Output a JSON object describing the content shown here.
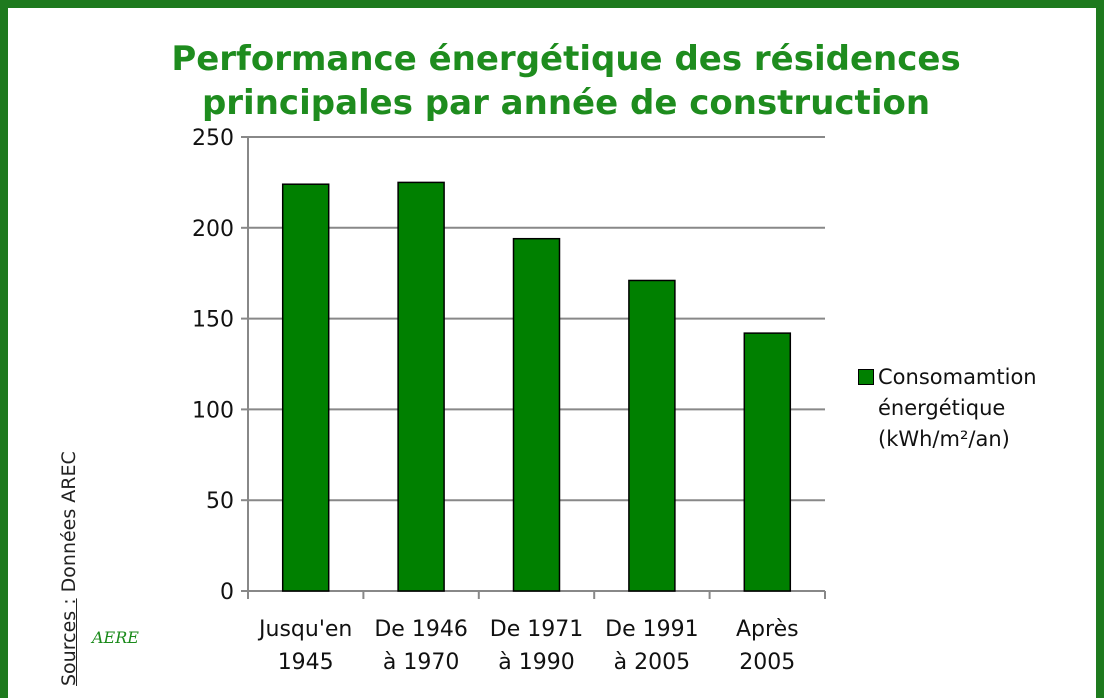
{
  "chart_data": {
    "type": "bar",
    "title": [
      "Performance énergétique des résidences",
      "principales par année de construction"
    ],
    "categories": [
      [
        "Jusqu'en",
        "1945"
      ],
      [
        "De 1946",
        "à 1970"
      ],
      [
        "De 1971",
        "à 1990"
      ],
      [
        "De 1991",
        "à 2005"
      ],
      [
        "Après",
        "2005"
      ]
    ],
    "series": [
      {
        "name": "Consomamtion énergétique (kWh/m²/an)",
        "color": "#008000",
        "values": [
          224,
          225,
          194,
          171,
          142
        ]
      }
    ],
    "ylim": [
      0,
      250
    ],
    "yticks": [
      0,
      50,
      100,
      150,
      200,
      250
    ],
    "grid": true,
    "legend": "right",
    "source_label": "Sources :",
    "source": "Données AREC",
    "logo": "AERE"
  }
}
